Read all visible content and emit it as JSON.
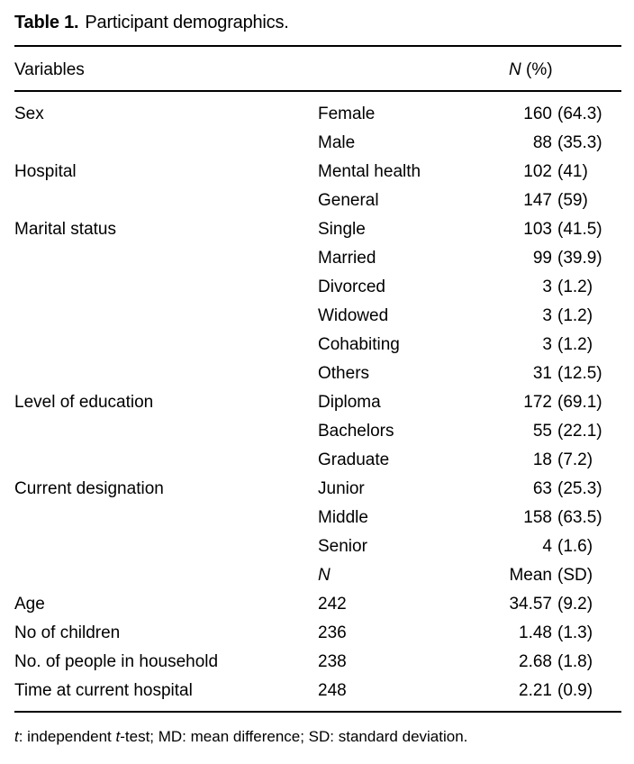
{
  "title": {
    "label": "Table 1.",
    "caption": "Participant demographics."
  },
  "columns": {
    "variables": "Variables",
    "n_pct_symbol": "N",
    "n_pct_rest": " (%)"
  },
  "rows": [
    {
      "variable": "Sex",
      "item": "Female",
      "item_italic": false,
      "value": "160",
      "paren": "(64.3)"
    },
    {
      "variable": "",
      "item": "Male",
      "item_italic": false,
      "value": "88",
      "paren": "(35.3)"
    },
    {
      "variable": "Hospital",
      "item": "Mental health",
      "item_italic": false,
      "value": "102",
      "paren": "(41)"
    },
    {
      "variable": "",
      "item": "General",
      "item_italic": false,
      "value": "147",
      "paren": "(59)"
    },
    {
      "variable": "Marital status",
      "item": "Single",
      "item_italic": false,
      "value": "103",
      "paren": "(41.5)"
    },
    {
      "variable": "",
      "item": "Married",
      "item_italic": false,
      "value": "99",
      "paren": "(39.9)"
    },
    {
      "variable": "",
      "item": "Divorced",
      "item_italic": false,
      "value": "3",
      "paren": "(1.2)"
    },
    {
      "variable": "",
      "item": "Widowed",
      "item_italic": false,
      "value": "3",
      "paren": "(1.2)"
    },
    {
      "variable": "",
      "item": "Cohabiting",
      "item_italic": false,
      "value": "3",
      "paren": "(1.2)"
    },
    {
      "variable": "",
      "item": "Others",
      "item_italic": false,
      "value": "31",
      "paren": "(12.5)"
    },
    {
      "variable": "Level of education",
      "item": "Diploma",
      "item_italic": false,
      "value": "172",
      "paren": "(69.1)"
    },
    {
      "variable": "",
      "item": "Bachelors",
      "item_italic": false,
      "value": "55",
      "paren": "(22.1)"
    },
    {
      "variable": "",
      "item": "Graduate",
      "item_italic": false,
      "value": "18",
      "paren": "(7.2)"
    },
    {
      "variable": "Current designation",
      "item": "Junior",
      "item_italic": false,
      "value": "63",
      "paren": "(25.3)"
    },
    {
      "variable": "",
      "item": "Middle",
      "item_italic": false,
      "value": "158",
      "paren": "(63.5)"
    },
    {
      "variable": "",
      "item": "Senior",
      "item_italic": false,
      "value": "4",
      "paren": "(1.6)"
    },
    {
      "variable": "",
      "item": "N",
      "item_italic": true,
      "value": "Mean",
      "paren": "(SD)"
    },
    {
      "variable": "Age",
      "item": "242",
      "item_italic": false,
      "value": "34.57",
      "paren": "(9.2)"
    },
    {
      "variable": "No of children",
      "item": "236",
      "item_italic": false,
      "value": "1.48",
      "paren": "(1.3)"
    },
    {
      "variable": "No. of people in household",
      "item": "238",
      "item_italic": false,
      "value": "2.68",
      "paren": "(1.8)"
    },
    {
      "variable": "Time at current hospital",
      "item": "248",
      "item_italic": false,
      "value": "2.21",
      "paren": "(0.9)"
    }
  ],
  "footnote": {
    "segments": [
      {
        "text": "t",
        "italic": true
      },
      {
        "text": ": independent ",
        "italic": false
      },
      {
        "text": "t",
        "italic": true
      },
      {
        "text": "-test; MD: mean difference; SD: standard deviation.",
        "italic": false
      }
    ]
  }
}
